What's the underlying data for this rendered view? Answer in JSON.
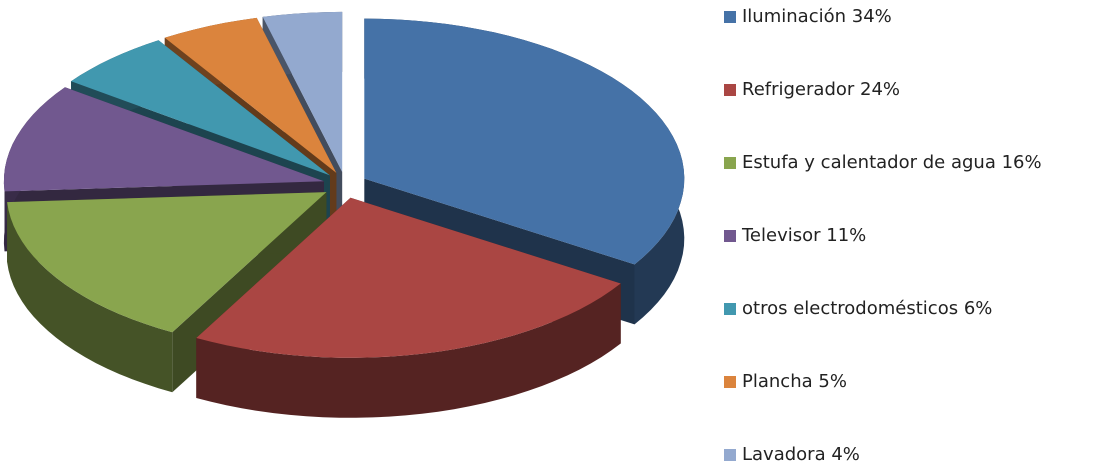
{
  "chart_data": {
    "type": "pie3d",
    "categories": [
      "Iluminación",
      "Refrigerador",
      "Estufa y calentador de agua",
      "Televisor",
      "otros electrodomésticos",
      "Plancha",
      "Lavadora"
    ],
    "values": [
      34,
      24,
      16,
      11,
      6,
      5,
      4
    ],
    "value_labels": [
      "34%",
      "24%",
      "16%",
      "11%",
      "6%",
      "5%",
      "4%"
    ],
    "colors": [
      "#4572a7",
      "#aa4643",
      "#89a54e",
      "#71588f",
      "#4198af",
      "#db843d",
      "#93a9cf"
    ],
    "legend": "right"
  }
}
